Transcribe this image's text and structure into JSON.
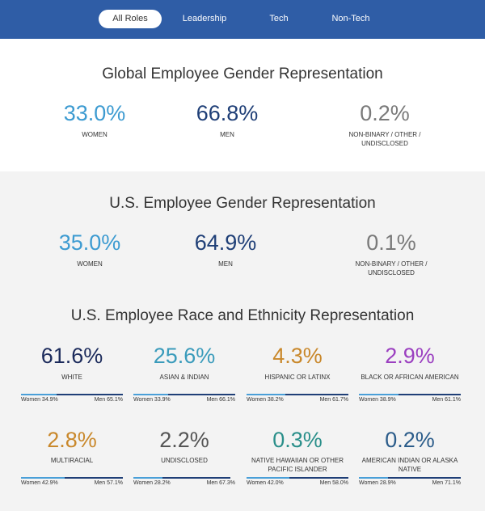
{
  "nav": {
    "tabs": [
      "All Roles",
      "Leadership",
      "Tech",
      "Non-Tech"
    ],
    "active": 0
  },
  "global": {
    "title": "Global Employee Gender Representation",
    "stats": [
      {
        "value": "33.0%",
        "label": "WOMEN",
        "color": "#3d9bd1"
      },
      {
        "value": "66.8%",
        "label": "MEN",
        "color": "#1f3f77"
      },
      {
        "value": "0.2%",
        "label": "NON-BINARY / OTHER / UNDISCLOSED",
        "color": "#7a7a7a"
      }
    ]
  },
  "us_gender": {
    "title": "U.S. Employee Gender Representation",
    "stats": [
      {
        "value": "35.0%",
        "label": "WOMEN",
        "color": "#3d9bd1"
      },
      {
        "value": "64.9%",
        "label": "MEN",
        "color": "#1f3f77"
      },
      {
        "value": "0.1%",
        "label": "NON-BINARY / OTHER / UNDISCLOSED",
        "color": "#7a7a7a"
      }
    ]
  },
  "us_race": {
    "title": "U.S. Employee Race and Ethnicity Representation",
    "groups": [
      {
        "value": "61.6%",
        "label": "WHITE",
        "color": "#1b2a5b",
        "split": [
          {
            "value": 34.9,
            "label": "Women 34.9%"
          },
          {
            "value": 65.1,
            "label": "Men 65.1%"
          }
        ]
      },
      {
        "value": "25.6%",
        "label": "ASIAN & INDIAN",
        "color": "#3a9bbb",
        "split": [
          {
            "value": 33.9,
            "label": "Women 33.9%"
          },
          {
            "value": 66.1,
            "label": "Men 66.1%"
          }
        ]
      },
      {
        "value": "4.3%",
        "label": "HISPANIC OR LATINX",
        "color": "#c9882b",
        "split": [
          {
            "value": 38.2,
            "label": "Women 38.2%"
          },
          {
            "value": 61.7,
            "label": "Men 61.7%"
          }
        ]
      },
      {
        "value": "2.9%",
        "label": "BLACK OR AFRICAN AMERICAN",
        "color": "#9b3fc0",
        "split": [
          {
            "value": 38.9,
            "label": "Women 38.9%"
          },
          {
            "value": 61.1,
            "label": "Men 61.1%"
          }
        ]
      },
      {
        "value": "2.8%",
        "label": "MULTIRACIAL",
        "color": "#c9882b",
        "split": [
          {
            "value": 42.9,
            "label": "Women 42.9%"
          },
          {
            "value": 57.1,
            "label": "Men 57.1%"
          }
        ]
      },
      {
        "value": "2.2%",
        "label": "UNDISCLOSED",
        "color": "#555555",
        "split": [
          {
            "value": 28.2,
            "label": "Women 28.2%"
          },
          {
            "value": 67.3,
            "label": "Men 67.3%"
          }
        ]
      },
      {
        "value": "0.3%",
        "label": "NATIVE HAWAIIAN OR OTHER PACIFIC ISLANDER",
        "color": "#2a8f8a",
        "split": [
          {
            "value": 42.0,
            "label": "Women 42.0%"
          },
          {
            "value": 58.0,
            "label": "Men 58.0%"
          }
        ]
      },
      {
        "value": "0.2%",
        "label": "AMERICAN INDIAN OR ALASKA NATIVE",
        "color": "#2b5c8a",
        "split": [
          {
            "value": 28.9,
            "label": "Women 28.9%"
          },
          {
            "value": 71.1,
            "label": "Men 71.1%"
          }
        ]
      }
    ]
  }
}
